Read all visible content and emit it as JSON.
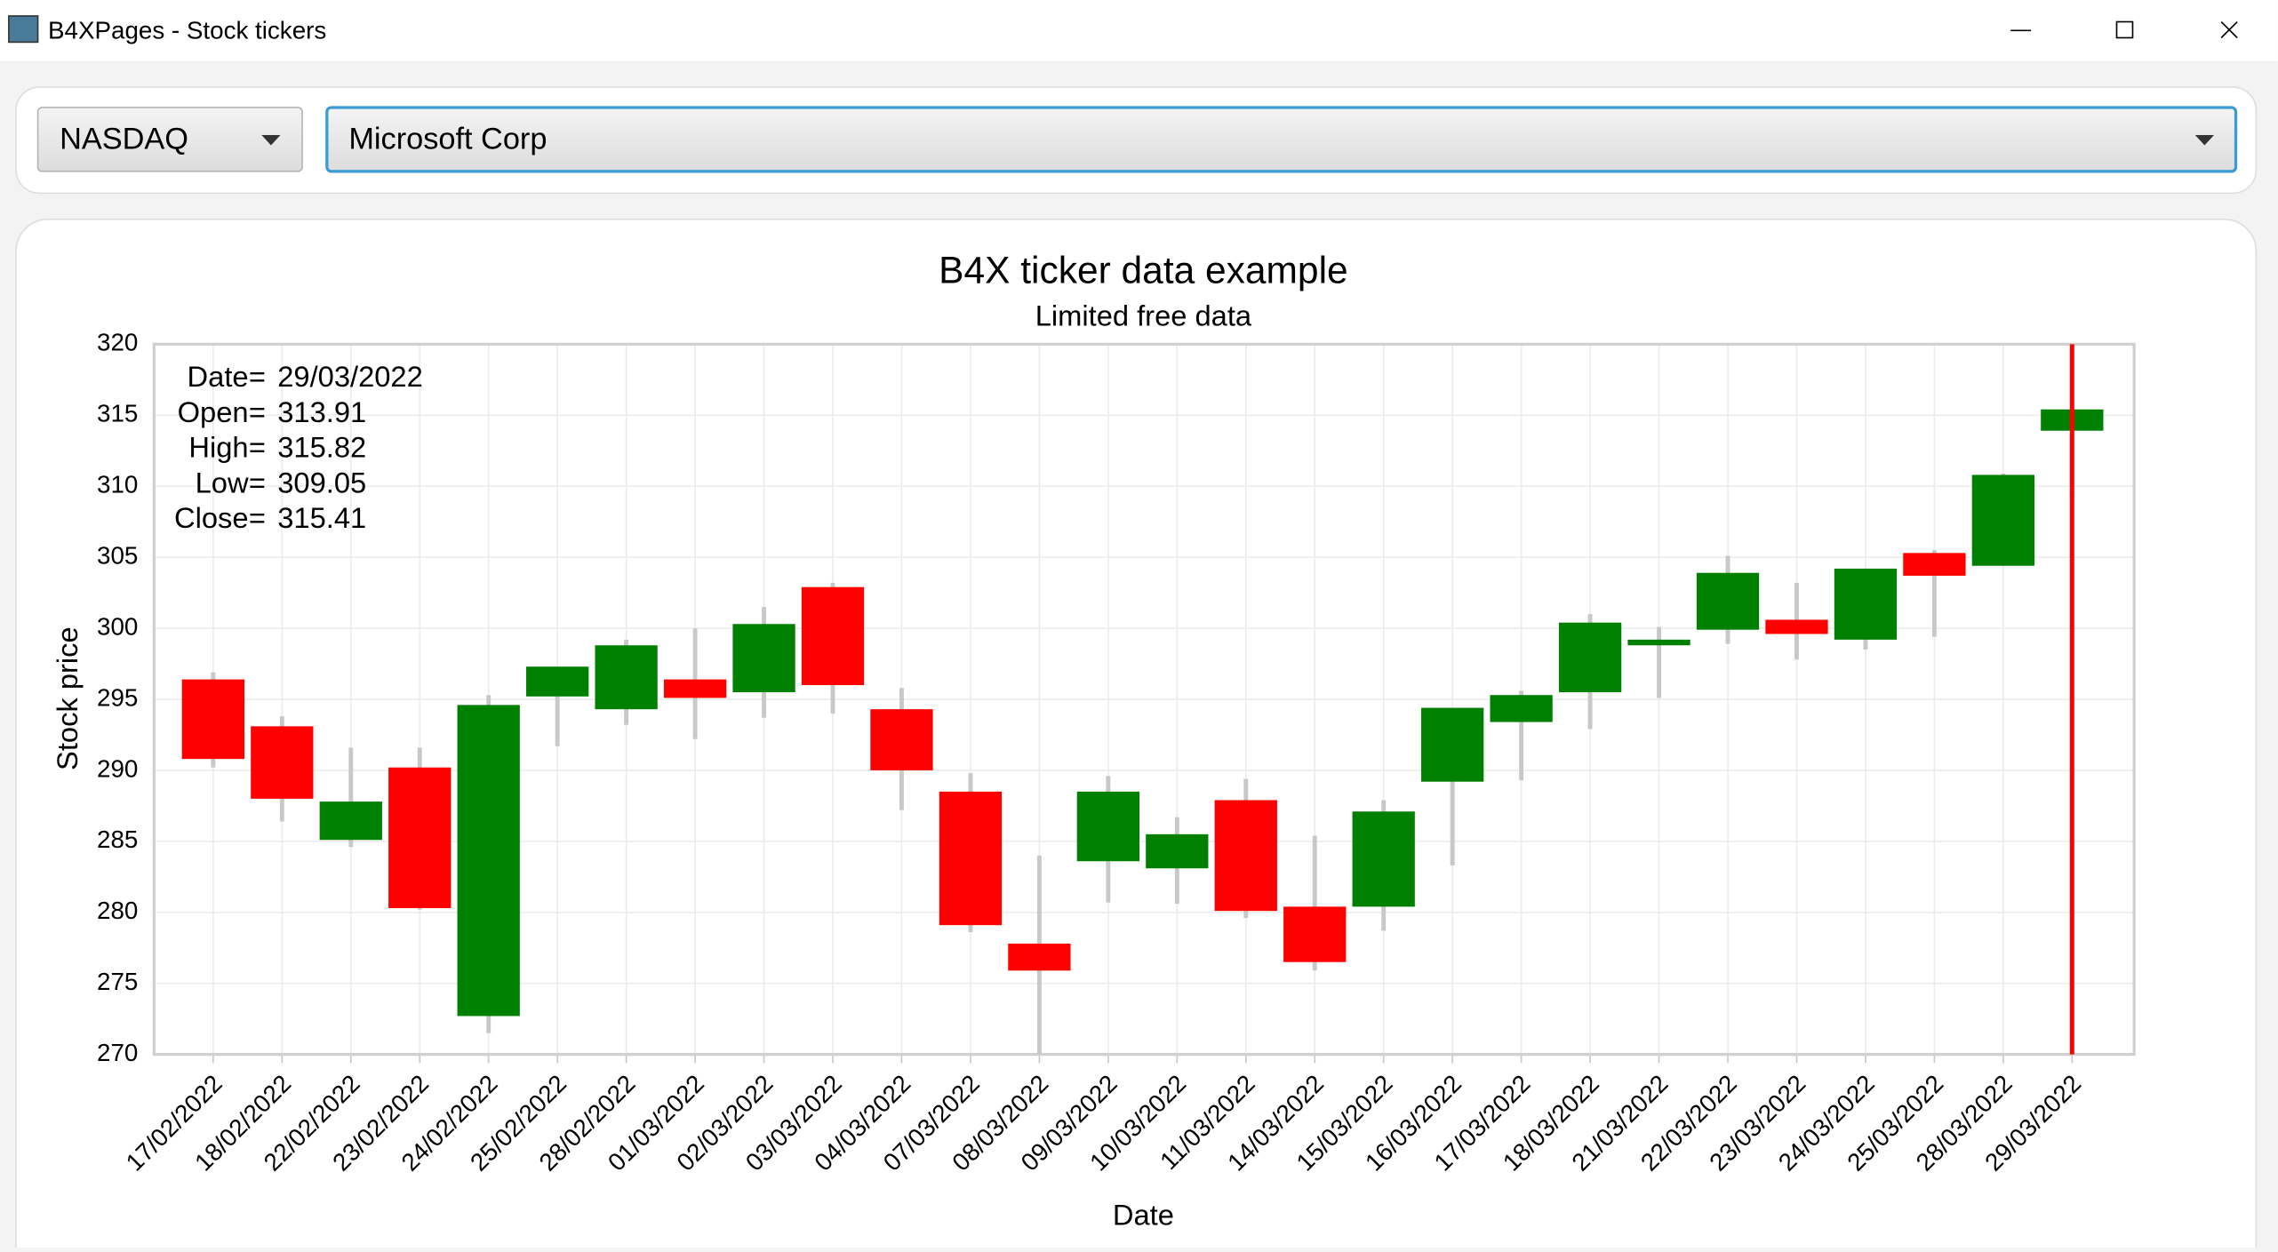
{
  "window": {
    "title": "B4XPages - Stock tickers"
  },
  "controls": {
    "exchange": "NASDAQ",
    "company": "Microsoft Corp"
  },
  "chart_data": {
    "type": "candlestick",
    "title": "B4X ticker data example",
    "subtitle": "Limited free data",
    "x_label": "Date",
    "y_label": "Stock price",
    "categories": [
      "17/02/2022",
      "18/02/2022",
      "22/02/2022",
      "23/02/2022",
      "24/02/2022",
      "25/02/2022",
      "28/02/2022",
      "01/03/2022",
      "02/03/2022",
      "03/03/2022",
      "04/03/2022",
      "07/03/2022",
      "08/03/2022",
      "09/03/2022",
      "10/03/2022",
      "11/03/2022",
      "14/03/2022",
      "15/03/2022",
      "16/03/2022",
      "17/03/2022",
      "18/03/2022",
      "21/03/2022",
      "22/03/2022",
      "23/03/2022",
      "24/03/2022",
      "25/03/2022",
      "28/03/2022",
      "29/03/2022"
    ],
    "open": [
      296.4,
      293.1,
      285.1,
      290.2,
      272.7,
      295.2,
      294.3,
      296.4,
      295.5,
      302.9,
      294.3,
      288.5,
      277.8,
      283.6,
      283.1,
      287.9,
      280.4,
      280.4,
      289.2,
      293.4,
      295.5,
      298.8,
      299.9,
      300.6,
      299.2,
      305.3,
      304.4,
      313.91
    ],
    "high": [
      296.9,
      293.8,
      291.6,
      291.6,
      295.3,
      297.3,
      299.2,
      300.0,
      301.5,
      303.2,
      295.8,
      289.8,
      284.0,
      289.6,
      286.7,
      289.4,
      285.4,
      287.9,
      294.4,
      295.6,
      301.0,
      300.1,
      305.1,
      303.2,
      304.2,
      305.5,
      310.9,
      315.82
    ],
    "low": [
      290.2,
      286.4,
      284.6,
      280.2,
      271.5,
      291.7,
      293.2,
      292.2,
      293.7,
      294.0,
      287.2,
      278.6,
      270.0,
      280.7,
      280.6,
      279.6,
      275.9,
      278.7,
      283.3,
      289.3,
      292.9,
      295.1,
      298.9,
      297.8,
      298.5,
      299.4,
      304.4,
      309.05
    ],
    "close": [
      290.8,
      288.0,
      287.8,
      280.3,
      294.6,
      297.3,
      298.8,
      295.1,
      300.3,
      296.0,
      290.0,
      279.1,
      275.9,
      288.5,
      285.5,
      280.1,
      276.5,
      287.1,
      294.4,
      295.3,
      300.4,
      299.2,
      303.9,
      299.6,
      304.2,
      303.7,
      310.8,
      315.41
    ],
    "up_color": "#008000",
    "down_color": "#ff0000",
    "wick_color": "#c8c8c8",
    "cursor_color": "#ff0000",
    "ylim": [
      270,
      320
    ],
    "yticks": [
      270,
      275,
      280,
      285,
      290,
      295,
      300,
      305,
      310,
      315,
      320
    ],
    "grid": true
  },
  "tooltip": {
    "separator": "=",
    "rows": [
      {
        "label": "Date",
        "value": "29/03/2022"
      },
      {
        "label": "Open",
        "value": 313.91
      },
      {
        "label": "High",
        "value": 315.82
      },
      {
        "label": "Low",
        "value": 309.05
      },
      {
        "label": "Close",
        "value": 315.41
      }
    ]
  }
}
